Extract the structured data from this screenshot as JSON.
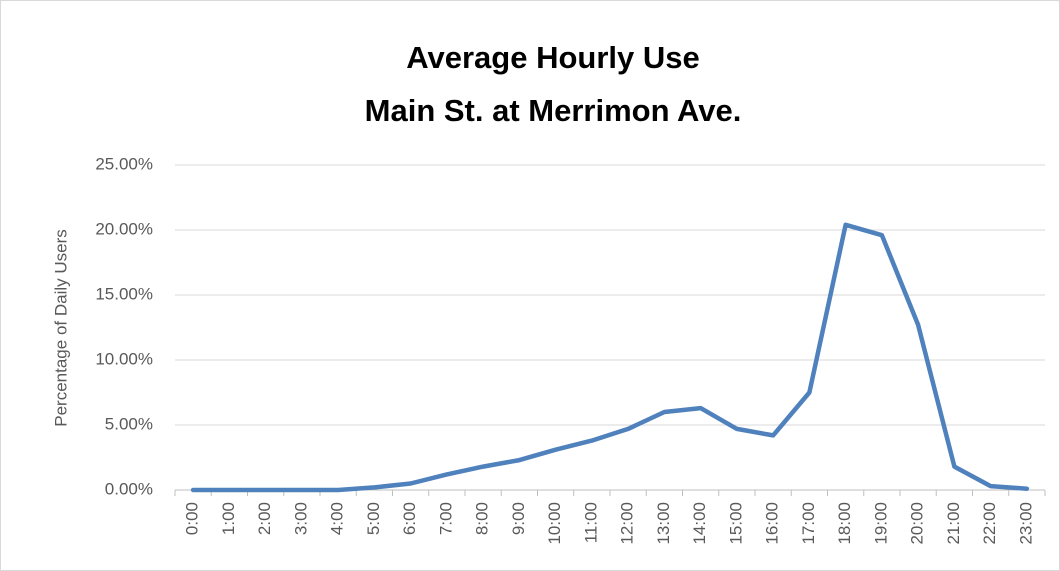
{
  "chart_data": {
    "type": "line",
    "title": "Average Hourly Use",
    "subtitle": "Main St. at Merrimon Ave.",
    "ylabel": "Percentage of Daily Users",
    "categories": [
      "0:00",
      "1:00",
      "2:00",
      "3:00",
      "4:00",
      "5:00",
      "6:00",
      "7:00",
      "8:00",
      "9:00",
      "10:00",
      "11:00",
      "12:00",
      "13:00",
      "14:00",
      "15:00",
      "16:00",
      "17:00",
      "18:00",
      "19:00",
      "20:00",
      "21:00",
      "22:00",
      "23:00"
    ],
    "values": [
      0,
      0,
      0,
      0,
      0,
      0.2,
      0.5,
      1.2,
      1.8,
      2.3,
      3.1,
      3.8,
      4.7,
      6.0,
      6.3,
      4.7,
      4.2,
      7.5,
      20.4,
      19.6,
      12.7,
      1.8,
      0.3,
      0.1
    ],
    "color": "#4f81bd",
    "ylim": [
      0,
      25
    ],
    "yticks": [
      {
        "value": 0,
        "label": "0.00%"
      },
      {
        "value": 5,
        "label": "5.00%"
      },
      {
        "value": 10,
        "label": "10.00%"
      },
      {
        "value": 15,
        "label": "15.00%"
      },
      {
        "value": 20,
        "label": "20.00%"
      },
      {
        "value": 25,
        "label": "25.00%"
      }
    ],
    "grid": true
  }
}
